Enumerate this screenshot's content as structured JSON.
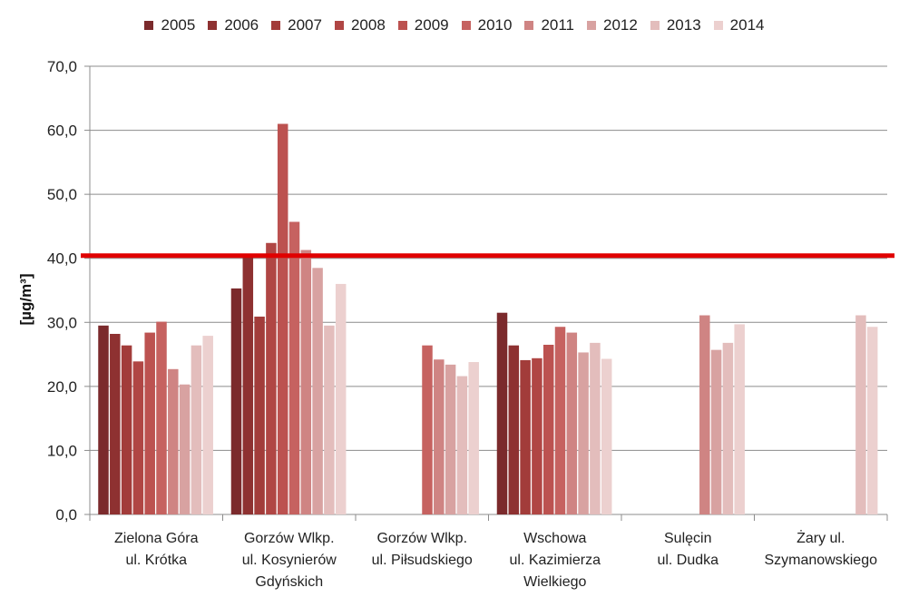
{
  "chart_data": {
    "type": "bar",
    "title": "",
    "ylabel": "[µg/m³]",
    "xlabel": "",
    "ylim": [
      0,
      70
    ],
    "yticks": [
      "0,0",
      "10,0",
      "20,0",
      "30,0",
      "40,0",
      "50,0",
      "60,0",
      "70,0"
    ],
    "grid": true,
    "legend_position": "top",
    "categories": [
      [
        "Zielona Góra",
        "ul. Krótka"
      ],
      [
        "Gorzów Wlkp.",
        "ul. Kosynierów",
        "Gdyńskich"
      ],
      [
        "Gorzów Wlkp.",
        "ul. Piłsudskiego"
      ],
      [
        "Wschowa",
        "ul. Kazimierza",
        "Wielkiego"
      ],
      [
        "Sulęcin",
        "ul. Dudka"
      ],
      [
        "Żary ul.",
        "Szymanowskiego"
      ]
    ],
    "series": [
      {
        "name": "2005",
        "color": "#7b2a2c",
        "values": [
          29.5,
          35.3,
          null,
          31.5,
          null,
          null
        ]
      },
      {
        "name": "2006",
        "color": "#8e3131",
        "values": [
          28.2,
          40.3,
          null,
          26.4,
          null,
          null
        ]
      },
      {
        "name": "2007",
        "color": "#a23c3a",
        "values": [
          26.4,
          30.9,
          null,
          24.1,
          null,
          null
        ]
      },
      {
        "name": "2008",
        "color": "#b04644",
        "values": [
          23.9,
          42.4,
          null,
          24.4,
          null,
          null
        ]
      },
      {
        "name": "2009",
        "color": "#bc5250",
        "values": [
          28.4,
          61.0,
          null,
          26.5,
          null,
          null
        ]
      },
      {
        "name": "2010",
        "color": "#c66260",
        "values": [
          30.1,
          45.7,
          26.4,
          29.3,
          null,
          null
        ]
      },
      {
        "name": "2011",
        "color": "#cf8483",
        "values": [
          22.7,
          41.3,
          24.2,
          28.4,
          31.1,
          null
        ]
      },
      {
        "name": "2012",
        "color": "#d8a2a1",
        "values": [
          20.3,
          38.5,
          23.4,
          25.3,
          25.7,
          null
        ]
      },
      {
        "name": "2013",
        "color": "#e3bdbc",
        "values": [
          26.4,
          29.5,
          21.6,
          26.8,
          26.8,
          31.1
        ]
      },
      {
        "name": "2014",
        "color": "#ecd0cf",
        "values": [
          27.9,
          36.0,
          23.8,
          24.3,
          29.7,
          29.3
        ]
      }
    ],
    "reference_line": {
      "value": 40,
      "color": "#e00000"
    }
  }
}
